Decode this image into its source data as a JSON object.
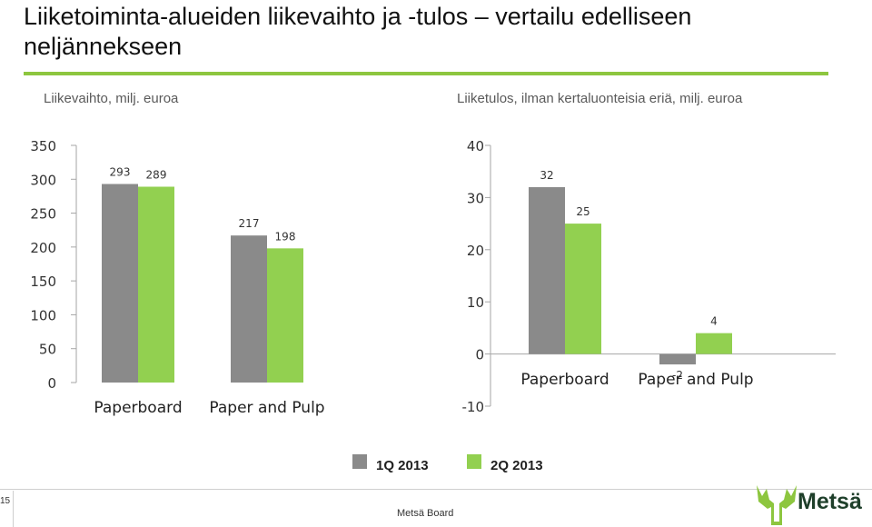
{
  "header": {
    "title": "Liiketoiminta-alueiden liikevaihto ja -tulos – vertailu edelliseen neljännekseen"
  },
  "colors": {
    "accent": "#8dc63f",
    "series_1q": "#8a8a8a",
    "series_2q": "#92d050",
    "logo_dark": "#1e3f2a"
  },
  "chart_data": [
    {
      "type": "bar",
      "title": "Liikevaihto, milj. euroa",
      "categories": [
        "Paperboard",
        "Paper and Pulp"
      ],
      "series": [
        {
          "name": "1Q 2013",
          "values": [
            293,
            217
          ]
        },
        {
          "name": "2Q 2013",
          "values": [
            289,
            198
          ]
        }
      ],
      "ylim": [
        0,
        350
      ],
      "yticks": [
        0,
        50,
        100,
        150,
        200,
        250,
        300,
        350
      ],
      "ytick_labels": [
        "0",
        "50",
        "100",
        "150",
        "200",
        "250",
        "300",
        "350"
      ],
      "grid": false,
      "legend": "bottom"
    },
    {
      "type": "bar",
      "title": "Liiketulos, ilman kertaluonteisia eriä, milj. euroa",
      "categories": [
        "Paperboard",
        "Paper and Pulp"
      ],
      "series": [
        {
          "name": "1Q 2013",
          "values": [
            32,
            -2
          ]
        },
        {
          "name": "2Q 2013",
          "values": [
            25,
            4
          ]
        }
      ],
      "ylim": [
        -10,
        40
      ],
      "yticks": [
        -10,
        0,
        10,
        20,
        30,
        40
      ],
      "ytick_labels": [
        "-10",
        "0",
        "10",
        "20",
        "30",
        "40"
      ],
      "grid": false,
      "legend": "bottom"
    }
  ],
  "legend": {
    "items": [
      {
        "label": "1Q 2013"
      },
      {
        "label": "2Q 2013"
      }
    ]
  },
  "footer": {
    "page_number": "15",
    "center_text": "Metsä Board",
    "logo_text": "Metsä",
    "logo_icon": "moose-antlers-icon"
  }
}
